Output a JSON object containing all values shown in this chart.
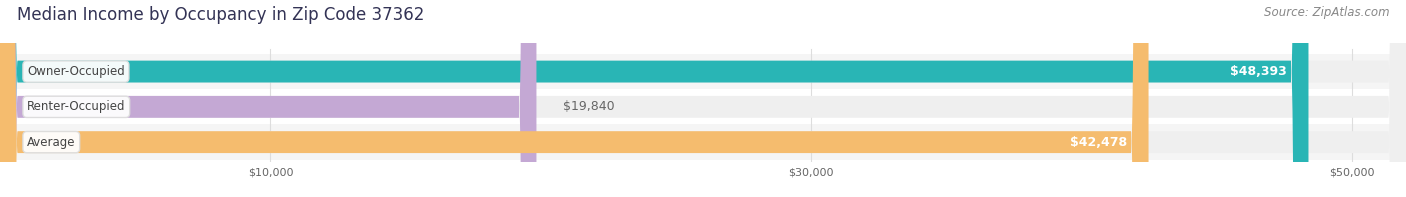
{
  "title": "Median Income by Occupancy in Zip Code 37362",
  "source": "Source: ZipAtlas.com",
  "categories": [
    "Owner-Occupied",
    "Renter-Occupied",
    "Average"
  ],
  "values": [
    48393,
    19840,
    42478
  ],
  "bar_colors": [
    "#29b5b5",
    "#c4a8d4",
    "#f5bc6e"
  ],
  "value_labels": [
    "$48,393",
    "$19,840",
    "$42,478"
  ],
  "label_positions": [
    "inside_end",
    "outside_end",
    "inside_end"
  ],
  "xlim_min": 0,
  "xlim_max": 52000,
  "xticks": [
    10000,
    30000,
    50000
  ],
  "xticklabels": [
    "$10,000",
    "$30,000",
    "$50,000"
  ],
  "background_color": "#ffffff",
  "bar_bg_color": "#efefef",
  "between_bar_color": "#ffffff",
  "title_fontsize": 12,
  "source_fontsize": 8.5,
  "bar_label_fontsize": 9,
  "category_fontsize": 8.5,
  "bar_height": 0.62,
  "bar_spacing": 1.0
}
